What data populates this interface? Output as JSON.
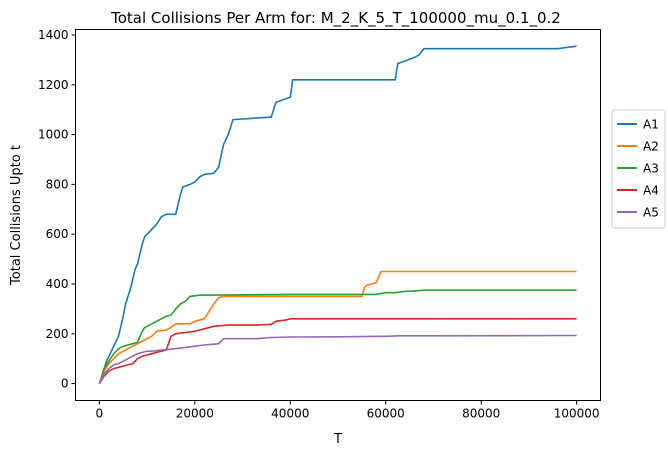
{
  "chart_data": {
    "type": "line",
    "title": "Total Collisions Per Arm for: M_2_K_5_T_100000_mu_0.1_0.2",
    "xlabel": "T",
    "ylabel": "Total Collisions Upto t",
    "xlim": [
      -5000,
      105000
    ],
    "ylim": [
      -68,
      1422
    ],
    "xticks": [
      0,
      20000,
      40000,
      60000,
      80000,
      100000
    ],
    "yticks": [
      0,
      200,
      400,
      600,
      800,
      1000,
      1200,
      1400
    ],
    "grid": false,
    "legend_position": "center-right (outside plot)",
    "series": [
      {
        "name": "A1",
        "color": "#1f77b4",
        "points": [
          [
            0,
            0
          ],
          [
            500,
            30
          ],
          [
            1000,
            60
          ],
          [
            1500,
            90
          ],
          [
            2000,
            110
          ],
          [
            2500,
            130
          ],
          [
            3000,
            150
          ],
          [
            4000,
            190
          ],
          [
            5000,
            270
          ],
          [
            5500,
            320
          ],
          [
            6000,
            350
          ],
          [
            6500,
            380
          ],
          [
            7000,
            420
          ],
          [
            7500,
            460
          ],
          [
            8000,
            480
          ],
          [
            8500,
            520
          ],
          [
            9000,
            560
          ],
          [
            9500,
            590
          ],
          [
            10000,
            600
          ],
          [
            11000,
            620
          ],
          [
            12000,
            640
          ],
          [
            13000,
            670
          ],
          [
            14000,
            680
          ],
          [
            16000,
            680
          ],
          [
            17000,
            760
          ],
          [
            17500,
            790
          ],
          [
            19000,
            800
          ],
          [
            20000,
            810
          ],
          [
            21000,
            830
          ],
          [
            22000,
            840
          ],
          [
            24000,
            845
          ],
          [
            25000,
            870
          ],
          [
            26000,
            960
          ],
          [
            27000,
            1000
          ],
          [
            28000,
            1060
          ],
          [
            36000,
            1070
          ],
          [
            37000,
            1130
          ],
          [
            40000,
            1150
          ],
          [
            40500,
            1220
          ],
          [
            62000,
            1220
          ],
          [
            62500,
            1285
          ],
          [
            64000,
            1295
          ],
          [
            66000,
            1310
          ],
          [
            67000,
            1320
          ],
          [
            68000,
            1345
          ],
          [
            96000,
            1345
          ],
          [
            98000,
            1350
          ],
          [
            100000,
            1355
          ]
        ]
      },
      {
        "name": "A2",
        "color": "#ff7f0e",
        "points": [
          [
            0,
            0
          ],
          [
            1000,
            50
          ],
          [
            2000,
            80
          ],
          [
            3000,
            100
          ],
          [
            4000,
            120
          ],
          [
            5000,
            130
          ],
          [
            6000,
            140
          ],
          [
            7000,
            150
          ],
          [
            8000,
            160
          ],
          [
            9000,
            170
          ],
          [
            10000,
            180
          ],
          [
            11000,
            190
          ],
          [
            12000,
            210
          ],
          [
            14000,
            215
          ],
          [
            15000,
            225
          ],
          [
            16000,
            240
          ],
          [
            19000,
            240
          ],
          [
            20000,
            250
          ],
          [
            22000,
            260
          ],
          [
            23000,
            290
          ],
          [
            24000,
            320
          ],
          [
            25000,
            345
          ],
          [
            26000,
            350
          ],
          [
            45000,
            350
          ],
          [
            55000,
            350
          ],
          [
            55500,
            385
          ],
          [
            56000,
            395
          ],
          [
            57000,
            400
          ],
          [
            58000,
            405
          ],
          [
            59000,
            450
          ],
          [
            100000,
            450
          ]
        ]
      },
      {
        "name": "A3",
        "color": "#2ca02c",
        "points": [
          [
            0,
            0
          ],
          [
            1000,
            60
          ],
          [
            2000,
            90
          ],
          [
            3000,
            120
          ],
          [
            4000,
            140
          ],
          [
            5000,
            150
          ],
          [
            6000,
            155
          ],
          [
            7000,
            160
          ],
          [
            8000,
            165
          ],
          [
            9000,
            210
          ],
          [
            9500,
            225
          ],
          [
            10000,
            230
          ],
          [
            11000,
            240
          ],
          [
            12000,
            250
          ],
          [
            13000,
            260
          ],
          [
            14000,
            270
          ],
          [
            15000,
            275
          ],
          [
            16000,
            300
          ],
          [
            17000,
            320
          ],
          [
            18000,
            330
          ],
          [
            19000,
            350
          ],
          [
            21000,
            355
          ],
          [
            40000,
            358
          ],
          [
            55000,
            358
          ],
          [
            58000,
            358
          ],
          [
            60000,
            365
          ],
          [
            62000,
            365
          ],
          [
            64000,
            370
          ],
          [
            66000,
            372
          ],
          [
            68000,
            375
          ],
          [
            100000,
            375
          ]
        ]
      },
      {
        "name": "A4",
        "color": "#d62728",
        "points": [
          [
            0,
            0
          ],
          [
            1000,
            30
          ],
          [
            2000,
            50
          ],
          [
            3000,
            60
          ],
          [
            4000,
            65
          ],
          [
            5000,
            70
          ],
          [
            6000,
            75
          ],
          [
            7000,
            80
          ],
          [
            8000,
            100
          ],
          [
            9000,
            110
          ],
          [
            10000,
            115
          ],
          [
            11000,
            120
          ],
          [
            12000,
            125
          ],
          [
            13000,
            130
          ],
          [
            14000,
            135
          ],
          [
            15000,
            190
          ],
          [
            16000,
            200
          ],
          [
            18000,
            205
          ],
          [
            20000,
            210
          ],
          [
            21000,
            215
          ],
          [
            22000,
            220
          ],
          [
            24000,
            230
          ],
          [
            27000,
            235
          ],
          [
            33000,
            235
          ],
          [
            36000,
            238
          ],
          [
            37000,
            250
          ],
          [
            39000,
            255
          ],
          [
            40000,
            260
          ],
          [
            45000,
            260
          ],
          [
            60000,
            260
          ],
          [
            100000,
            260
          ]
        ]
      },
      {
        "name": "A5",
        "color": "#9467bd",
        "points": [
          [
            0,
            0
          ],
          [
            1000,
            40
          ],
          [
            2000,
            60
          ],
          [
            3000,
            75
          ],
          [
            4000,
            80
          ],
          [
            5000,
            90
          ],
          [
            6000,
            100
          ],
          [
            7000,
            110
          ],
          [
            8000,
            120
          ],
          [
            9000,
            125
          ],
          [
            10000,
            130
          ],
          [
            11000,
            130
          ],
          [
            13000,
            135
          ],
          [
            16000,
            140
          ],
          [
            18000,
            145
          ],
          [
            20000,
            150
          ],
          [
            22000,
            155
          ],
          [
            24000,
            158
          ],
          [
            25000,
            160
          ],
          [
            26000,
            180
          ],
          [
            33000,
            180
          ],
          [
            36000,
            185
          ],
          [
            40000,
            187
          ],
          [
            50000,
            188
          ],
          [
            60000,
            190
          ],
          [
            63000,
            192
          ],
          [
            70000,
            192
          ],
          [
            100000,
            193
          ]
        ]
      }
    ]
  }
}
